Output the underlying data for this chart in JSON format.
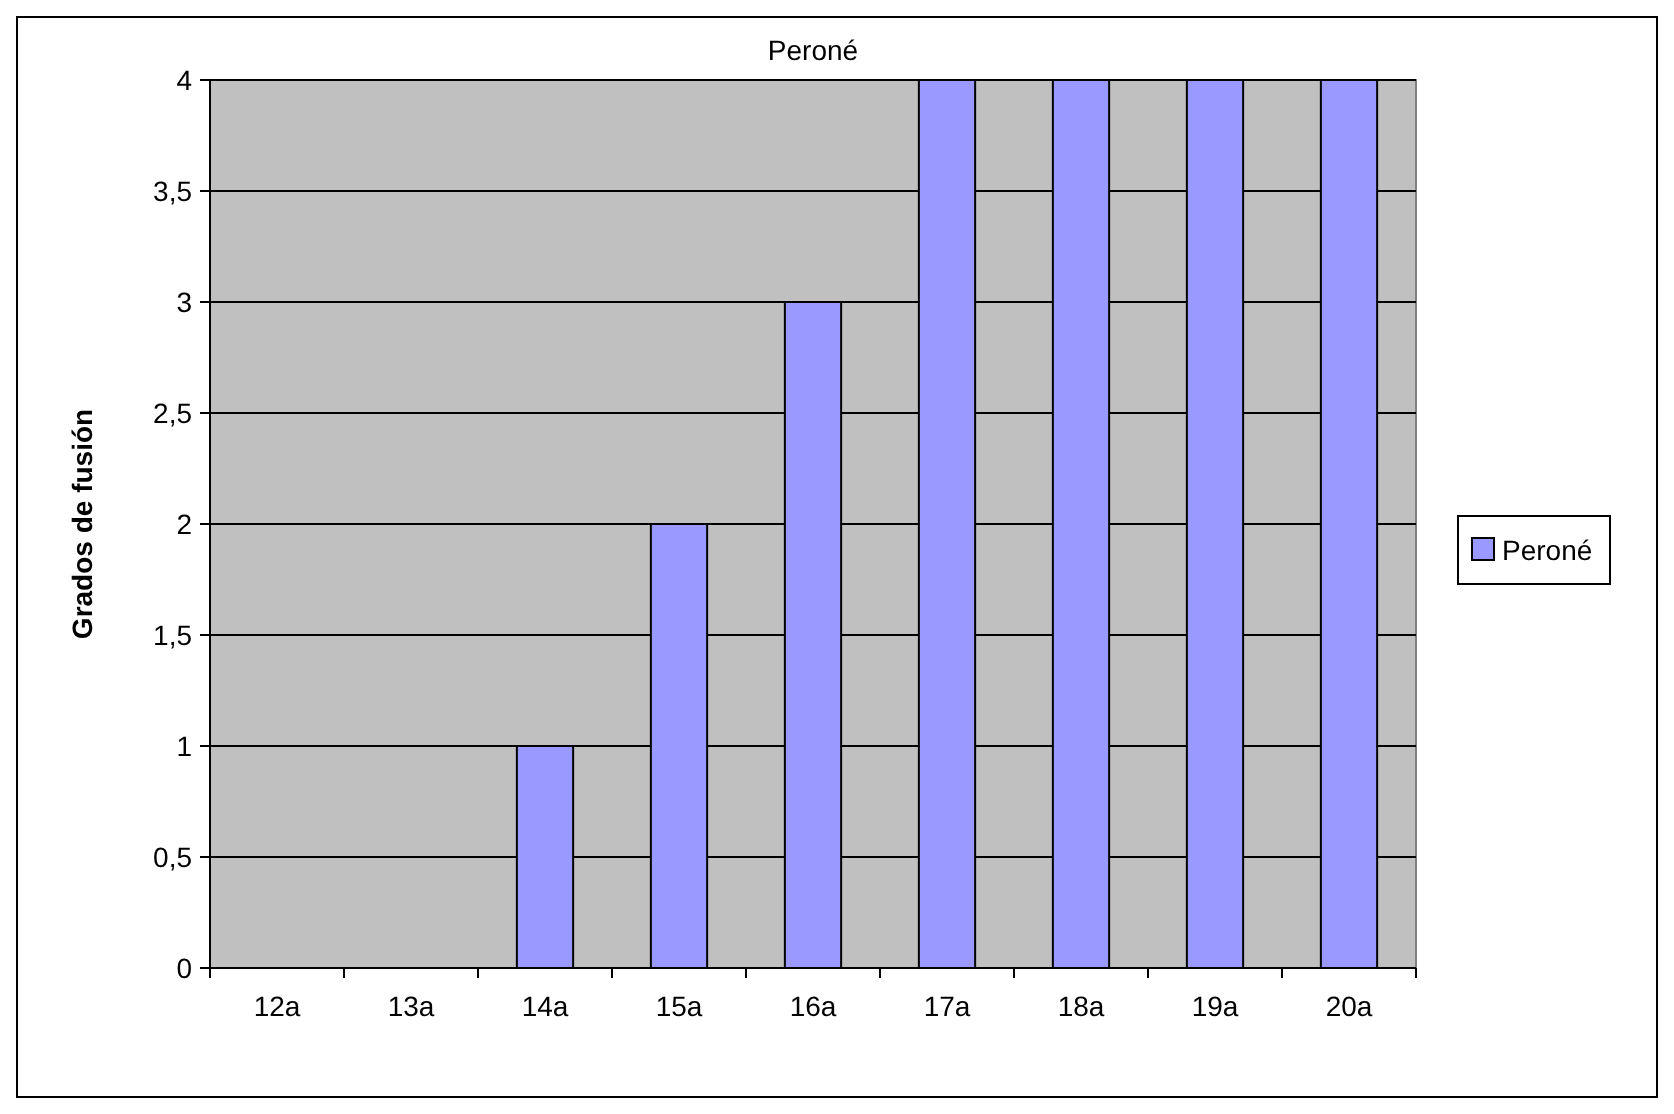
{
  "chart_data": {
    "type": "bar",
    "title": "Peroné",
    "ylabel": "Grados de fusión",
    "categories": [
      "12a",
      "13a",
      "14a",
      "15a",
      "16a",
      "17a",
      "18a",
      "19a",
      "20a"
    ],
    "series": [
      {
        "name": "Peroné",
        "color": "#9999ff",
        "values": [
          0,
          0,
          1,
          2,
          3,
          4,
          4,
          4,
          4
        ]
      }
    ],
    "ylim": [
      0,
      4
    ],
    "yticks": [
      0,
      {
        "value": 0.5,
        "label": "0,5"
      },
      1,
      {
        "value": 1.5,
        "label": "1,5"
      },
      2,
      {
        "value": 2.5,
        "label": "2,5"
      },
      3,
      {
        "value": 3.5,
        "label": "3,5"
      },
      4
    ],
    "grid": "y",
    "legend": "right"
  }
}
